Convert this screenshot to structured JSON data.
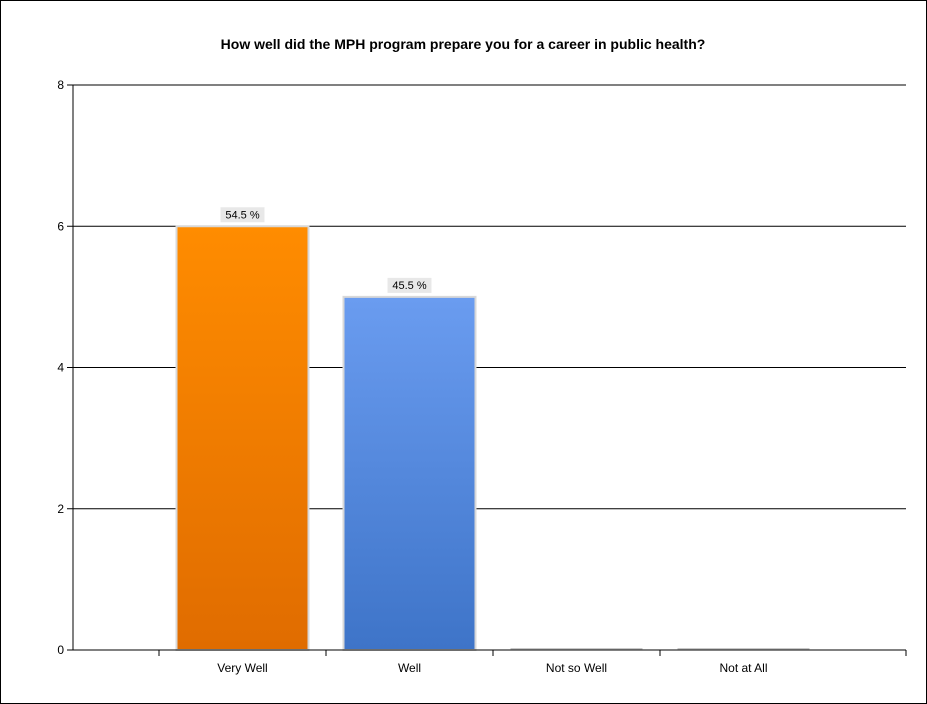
{
  "chart_data": {
    "type": "bar",
    "title": "How well did the MPH program prepare you for a career in public health?",
    "categories": [
      "Very Well",
      "Well",
      "Not so Well",
      "Not at All"
    ],
    "values": [
      6,
      5,
      0,
      0
    ],
    "data_labels": [
      "54.5 %",
      "45.5 %",
      "",
      ""
    ],
    "colors": [
      "#ff8c00",
      "#6495ed",
      "#ff8c00",
      "#6495ed"
    ],
    "ylim": [
      0,
      8
    ],
    "yticks": [
      0,
      2,
      4,
      6,
      8
    ],
    "ytick_labels": [
      "0",
      "2",
      "4",
      "6",
      "8"
    ],
    "grid": true,
    "legend": "none",
    "xlabel": "",
    "ylabel": ""
  }
}
